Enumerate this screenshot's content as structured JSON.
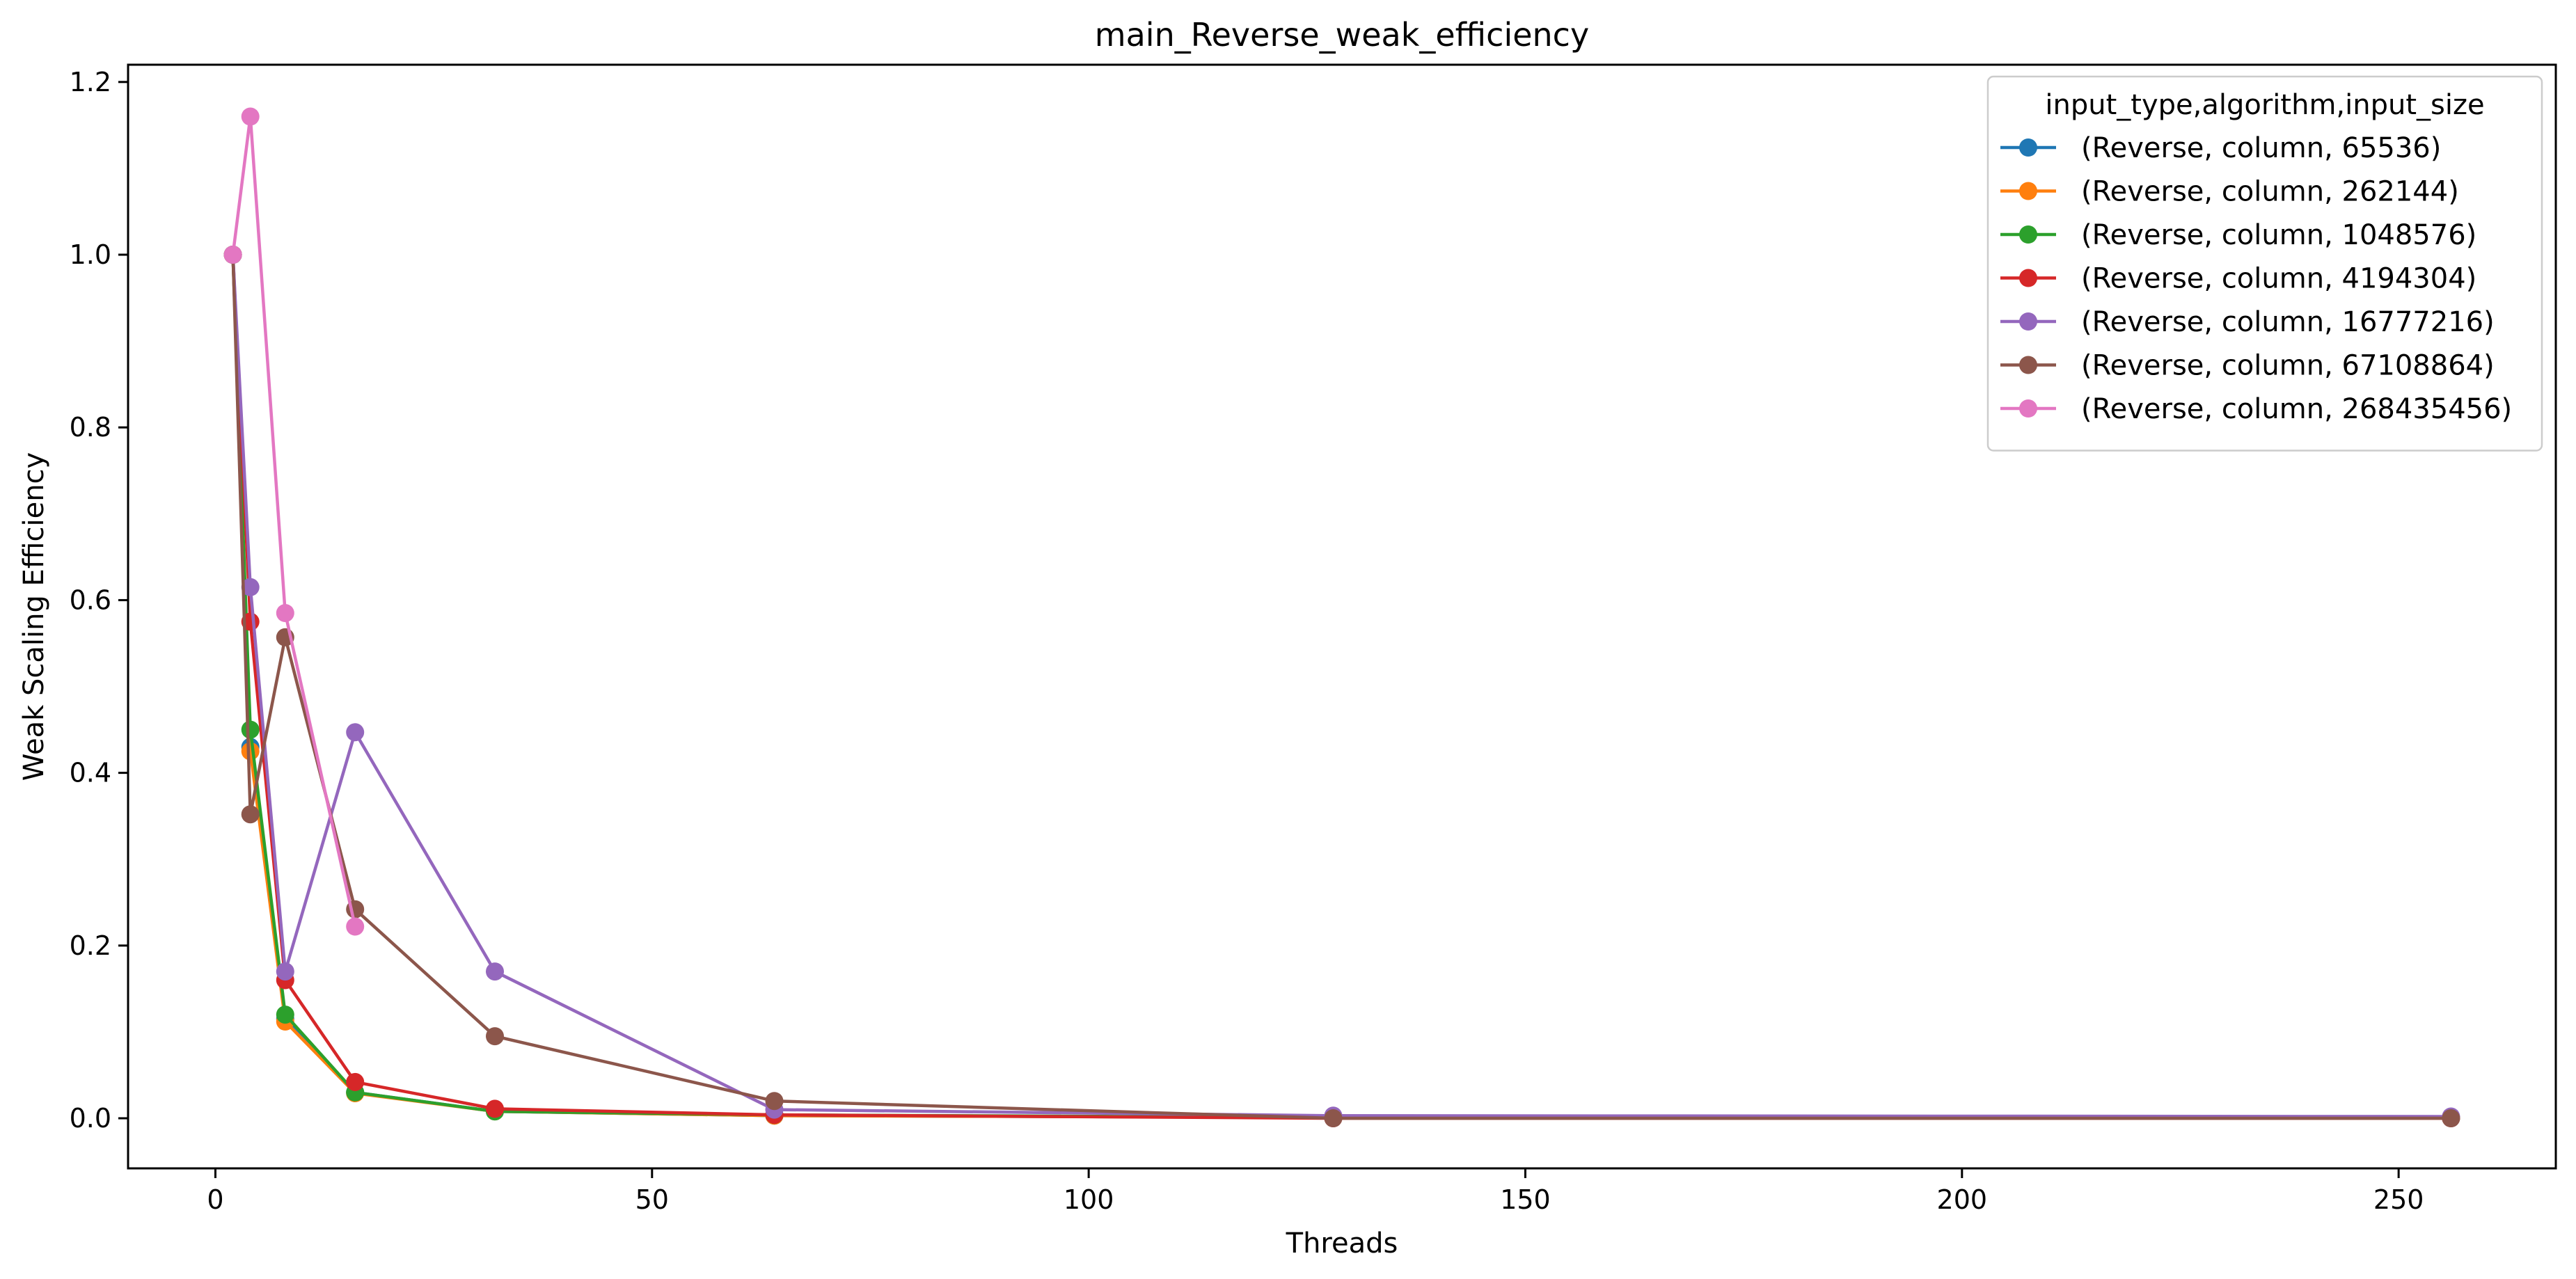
{
  "chart_data": {
    "type": "line",
    "title": "main_Reverse_weak_efficiency",
    "xlabel": "Threads",
    "ylabel": "Weak Scaling Efficiency",
    "xlim": [
      -10,
      268
    ],
    "ylim": [
      -0.058,
      1.22
    ],
    "xticks": [
      0,
      50,
      100,
      150,
      200,
      250
    ],
    "yticks": [
      0.0,
      0.2,
      0.4,
      0.6,
      0.8,
      1.0,
      1.2
    ],
    "xtick_labels": [
      "0",
      "50",
      "100",
      "150",
      "200",
      "250"
    ],
    "ytick_labels": [
      "0.0",
      "0.2",
      "0.4",
      "0.6",
      "0.8",
      "1.0",
      "1.2"
    ],
    "grid": false,
    "legend": {
      "title": "input_type,algorithm,input_size",
      "position": "top-right"
    },
    "series": [
      {
        "name": "(Reverse, column, 65536)",
        "color": "#1f77b4",
        "points": [
          [
            2,
            1.0
          ],
          [
            4,
            0.43
          ],
          [
            8,
            0.115
          ],
          [
            16,
            0.03
          ],
          [
            32,
            0.008
          ],
          [
            64,
            0.003
          ],
          [
            128,
            0.001
          ],
          [
            256,
            0.0005
          ]
        ]
      },
      {
        "name": "(Reverse, column, 262144)",
        "color": "#ff7f0e",
        "points": [
          [
            2,
            1.0
          ],
          [
            4,
            0.425
          ],
          [
            8,
            0.112
          ],
          [
            16,
            0.029
          ],
          [
            32,
            0.008
          ],
          [
            64,
            0.003
          ],
          [
            128,
            0.001
          ],
          [
            256,
            0.0005
          ]
        ]
      },
      {
        "name": "(Reverse, column, 1048576)",
        "color": "#2ca02c",
        "points": [
          [
            2,
            1.0
          ],
          [
            4,
            0.45
          ],
          [
            8,
            0.12
          ],
          [
            16,
            0.03
          ],
          [
            32,
            0.008
          ],
          [
            64,
            0.004
          ],
          [
            128,
            0.001
          ],
          [
            256,
            0.0005
          ]
        ]
      },
      {
        "name": "(Reverse, column, 4194304)",
        "color": "#d62728",
        "points": [
          [
            2,
            1.0
          ],
          [
            4,
            0.575
          ],
          [
            8,
            0.16
          ],
          [
            16,
            0.042
          ],
          [
            32,
            0.011
          ],
          [
            64,
            0.004
          ],
          [
            128,
            0.0
          ],
          [
            256,
            0.0
          ]
        ]
      },
      {
        "name": "(Reverse, column, 16777216)",
        "color": "#9467bd",
        "points": [
          [
            2,
            1.0
          ],
          [
            4,
            0.615
          ],
          [
            8,
            0.17
          ],
          [
            16,
            0.447
          ],
          [
            32,
            0.17
          ],
          [
            64,
            0.01
          ],
          [
            128,
            0.003
          ],
          [
            256,
            0.002
          ]
        ]
      },
      {
        "name": "(Reverse, column, 67108864)",
        "color": "#8c564b",
        "points": [
          [
            2,
            1.0
          ],
          [
            4,
            0.352
          ],
          [
            8,
            0.557
          ],
          [
            16,
            0.242
          ],
          [
            32,
            0.095
          ],
          [
            64,
            0.02
          ],
          [
            128,
            0.0
          ],
          [
            256,
            0.0
          ]
        ]
      },
      {
        "name": "(Reverse, column, 268435456)",
        "color": "#e377c2",
        "points": [
          [
            2,
            1.0
          ],
          [
            4,
            1.16
          ],
          [
            8,
            0.585
          ],
          [
            16,
            0.222
          ]
        ]
      }
    ]
  }
}
